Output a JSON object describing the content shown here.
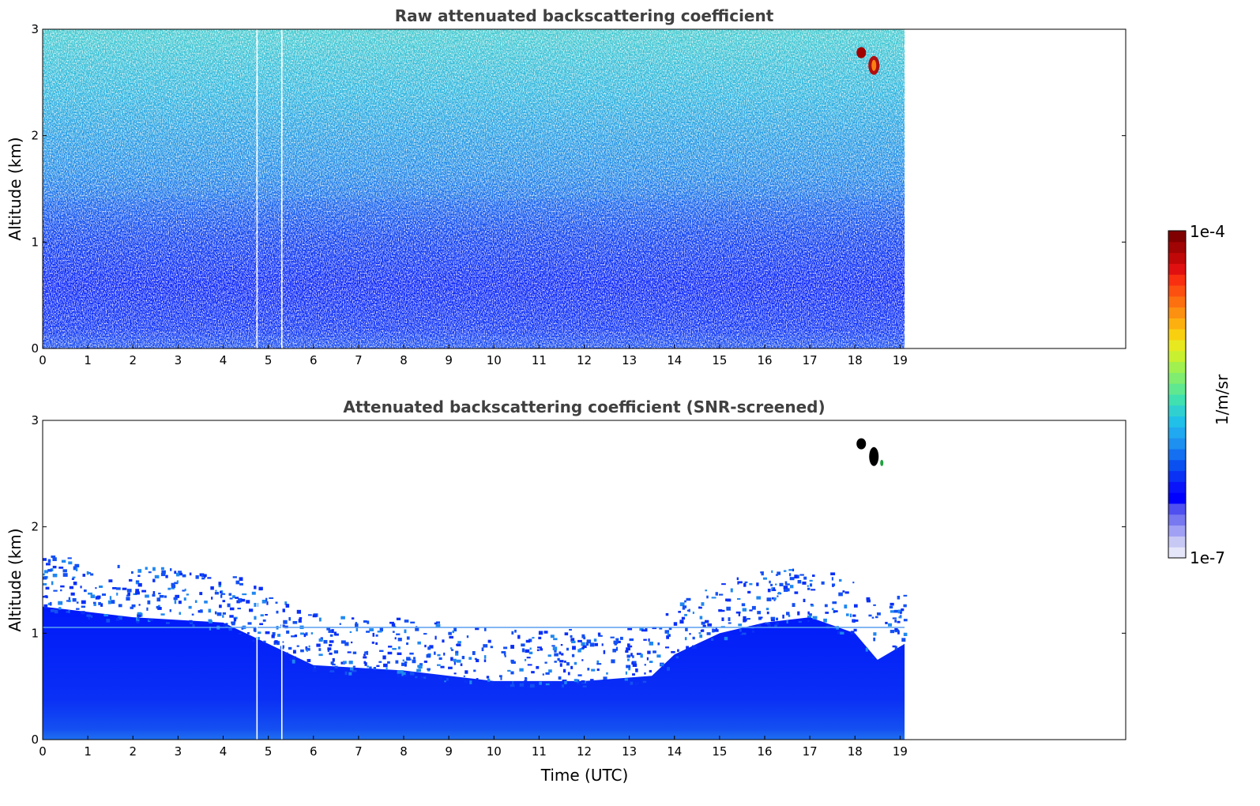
{
  "chart_data": [
    {
      "type": "heatmap",
      "title": "Raw attenuated backscattering coefficient",
      "xlabel": "",
      "ylabel": "Altitude (km)",
      "xlim": [
        0,
        24
      ],
      "ylim": [
        0,
        3
      ],
      "x_ticks": [
        "0",
        "1",
        "2",
        "3",
        "4",
        "5",
        "6",
        "7",
        "8",
        "9",
        "10",
        "11",
        "12",
        "13",
        "14",
        "15",
        "16",
        "17",
        "18",
        "19"
      ],
      "y_ticks": [
        "0",
        "1",
        "2",
        "3"
      ],
      "data_extent_x": [
        0,
        19.1
      ],
      "data_gaps_x": [
        4.75,
        5.3
      ],
      "features": [
        {
          "x_range": [
            0,
            19.1
          ],
          "y_range": [
            0,
            0.6
          ],
          "level": "high-blue"
        },
        {
          "x_range": [
            0,
            19.1
          ],
          "y_range": [
            0.6,
            3
          ],
          "level": "noisy-cyan"
        },
        {
          "x_range": [
            18.0,
            18.7
          ],
          "y_range": [
            2.55,
            2.85
          ],
          "level": "max-red"
        }
      ]
    },
    {
      "type": "heatmap",
      "title": "Attenuated backscattering coefficient (SNR-screened)",
      "xlabel": "Time (UTC)",
      "ylabel": "Altitude (km)",
      "xlim": [
        0,
        24
      ],
      "ylim": [
        0,
        3
      ],
      "x_ticks": [
        "0",
        "1",
        "2",
        "3",
        "4",
        "5",
        "6",
        "7",
        "8",
        "9",
        "10",
        "11",
        "12",
        "13",
        "14",
        "15",
        "16",
        "17",
        "18",
        "19"
      ],
      "y_ticks": [
        "0",
        "1",
        "2",
        "3"
      ],
      "data_extent_x": [
        0,
        19.1
      ],
      "data_gaps_x": [
        4.75,
        5.3
      ],
      "boundary_layer_top_km": [
        [
          0,
          1.25
        ],
        [
          2,
          1.15
        ],
        [
          4,
          1.1
        ],
        [
          5,
          0.9
        ],
        [
          6,
          0.7
        ],
        [
          8,
          0.65
        ],
        [
          9,
          0.6
        ],
        [
          10,
          0.55
        ],
        [
          12,
          0.55
        ],
        [
          13.5,
          0.6
        ],
        [
          14,
          0.8
        ],
        [
          15,
          1.0
        ],
        [
          16,
          1.1
        ],
        [
          17,
          1.15
        ],
        [
          18,
          1.0
        ],
        [
          18.5,
          0.75
        ],
        [
          19.1,
          0.9
        ]
      ],
      "features": [
        {
          "x_range": [
            18.0,
            18.7
          ],
          "y_range": [
            2.55,
            2.85
          ],
          "level": "max-black"
        }
      ]
    }
  ],
  "colorbar": {
    "max_label": "1e-4",
    "min_label": "1e-7",
    "label": "1/m/sr",
    "colors": [
      "#e6e6fa",
      "#c8c8f5",
      "#a0a0f5",
      "#7878f0",
      "#5050f0",
      "#0000ff",
      "#0a14fa",
      "#0a32f5",
      "#0a50f0",
      "#1470f0",
      "#1e90f0",
      "#20a8f0",
      "#20c0e8",
      "#30d0d0",
      "#40e0b0",
      "#60e890",
      "#80ec70",
      "#a0f050",
      "#c8f030",
      "#e8e820",
      "#f8d010",
      "#fcb010",
      "#fc9010",
      "#fc7010",
      "#fc5010",
      "#f83010",
      "#e01010",
      "#c00808",
      "#a00404",
      "#800000"
    ]
  }
}
